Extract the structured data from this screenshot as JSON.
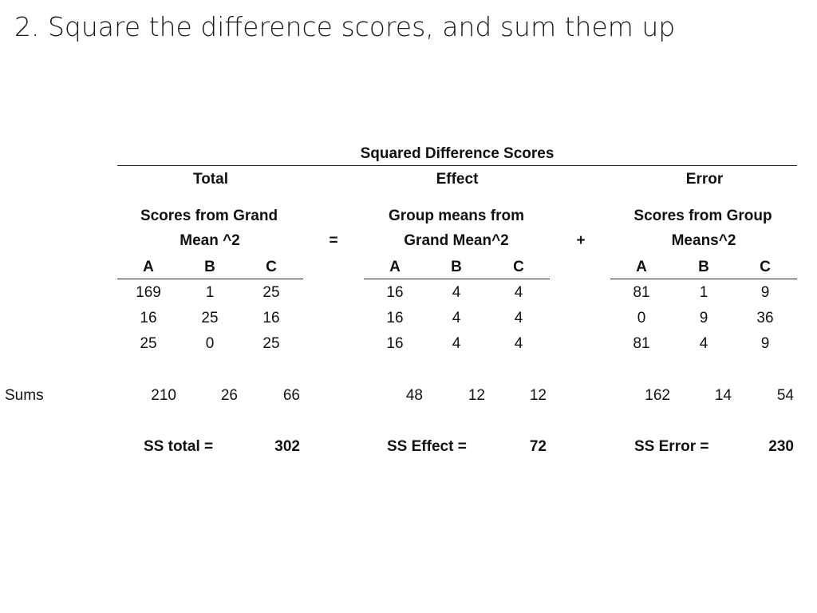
{
  "slide": {
    "title": "2. Square the difference scores, and sum them up"
  },
  "table": {
    "caption": "Squared Difference Scores",
    "equals_sign": "=",
    "plus_sign": "+",
    "sums_label": "Sums",
    "sections": [
      {
        "name": "Total",
        "sub_line1": "Scores from Grand",
        "sub_line2": "Mean ^2",
        "columns": [
          "A",
          "B",
          "C"
        ],
        "rows": [
          [
            "169",
            "1",
            "25"
          ],
          [
            "16",
            "25",
            "16"
          ],
          [
            "25",
            "0",
            "25"
          ]
        ],
        "sums": [
          "210",
          "26",
          "66"
        ],
        "ss_label": "SS total =",
        "ss_value": "302"
      },
      {
        "name": "Effect",
        "sub_line1": "Group means from",
        "sub_line2": "Grand Mean^2",
        "columns": [
          "A",
          "B",
          "C"
        ],
        "rows": [
          [
            "16",
            "4",
            "4"
          ],
          [
            "16",
            "4",
            "4"
          ],
          [
            "16",
            "4",
            "4"
          ]
        ],
        "sums": [
          "48",
          "12",
          "12"
        ],
        "ss_label": "SS Effect =",
        "ss_value": "72"
      },
      {
        "name": "Error",
        "sub_line1": "Scores from Group",
        "sub_line2": "Means^2",
        "columns": [
          "A",
          "B",
          "C"
        ],
        "rows": [
          [
            "81",
            "1",
            "9"
          ],
          [
            "0",
            "9",
            "36"
          ],
          [
            "81",
            "4",
            "9"
          ]
        ],
        "sums": [
          "162",
          "14",
          "54"
        ],
        "ss_label": "SS Error =",
        "ss_value": "230"
      }
    ]
  }
}
